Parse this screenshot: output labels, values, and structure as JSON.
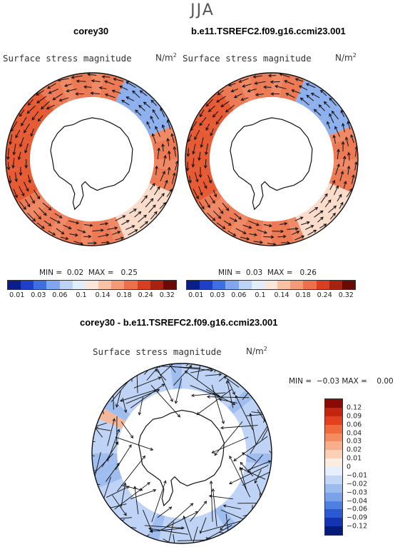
{
  "season": "JJA",
  "panels": [
    {
      "case": "corey30",
      "variable": "Surface stress magnitude",
      "units": "N/m",
      "units_exp": "2",
      "min_label": "MIN =",
      "min": "0.02",
      "max_label": "MAX =",
      "max": "0.25"
    },
    {
      "case": "b.e11.TSREFC2.f09.g16.ccmi23.001",
      "variable": "Surface stress magnitude",
      "units": "N/m",
      "units_exp": "2",
      "min_label": "MIN =",
      "min": "0.03",
      "max_label": "MAX =",
      "max": "0.26"
    }
  ],
  "diff": {
    "title": "corey30 - b.e11.TSREFC2.f09.g16.ccmi23.001",
    "variable": "Surface stress magnitude",
    "units": "N/m",
    "units_exp": "2",
    "min_label": "MIN =",
    "min": "−0.03",
    "max_label": "MAX =",
    "max": "0.00"
  },
  "abs_colorbar": {
    "labels": [
      "0.01",
      "0.03",
      "0.06",
      "0.1",
      "0.14",
      "0.18",
      "0.24",
      "0.32"
    ],
    "colors": [
      "#0a1e8a",
      "#1f3fc8",
      "#3d6fe0",
      "#7fa6ee",
      "#bdd3f6",
      "#e4eefb",
      "#fbe6da",
      "#f9c2a4",
      "#f49a78",
      "#ee6f4c",
      "#d83f22",
      "#a8230f",
      "#6a0a05"
    ]
  },
  "diff_colorbar": {
    "labels": [
      "0.12",
      "0.09",
      "0.06",
      "0.04",
      "0.03",
      "0.02",
      "0.01",
      "0",
      "−0.01",
      "−0.02",
      "−0.03",
      "−0.04",
      "−0.06",
      "−0.09",
      "−0.12"
    ],
    "colors": [
      "#8a0a06",
      "#c4250f",
      "#e2401e",
      "#ef6a3d",
      "#f58c61",
      "#f8ae8b",
      "#fbd0b7",
      "#fdece0",
      "#e6effb",
      "#c3d6f6",
      "#9dbcee",
      "#7ba1e6",
      "#4f7fe0",
      "#2c5ad4",
      "#1434b2",
      "#061a7a"
    ]
  }
}
